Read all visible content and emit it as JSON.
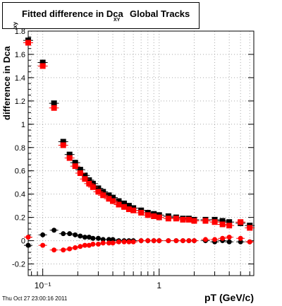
{
  "title": {
    "main": "Fitted difference in Dca",
    "sub": "XY",
    "tail": "Global Tracks"
  },
  "axes": {
    "ylabel": "difference in Dca",
    "ylabel_sub": "xy",
    "xlabel": "pT (GeV/c)",
    "y_ticks": [
      "1.8",
      "1.6",
      "1.4",
      "1.2",
      "1",
      "0.8",
      "0.6",
      "0.4",
      "0.2",
      "0",
      "-0.2"
    ],
    "x_ticks": [
      "10⁻¹",
      "1"
    ]
  },
  "stamp": "Thu Oct 27 23:00:16 2011",
  "colors": {
    "black": "#000000",
    "red": "#ff0000",
    "grid": "#aaaaaa"
  },
  "chart_data": {
    "type": "scatter",
    "xscale": "log",
    "xlim": [
      0.075,
      6.5
    ],
    "ylim": [
      -0.3,
      1.8
    ],
    "grid": true,
    "series": [
      {
        "color": "black",
        "marker": "square",
        "x": [
          0.075,
          0.1,
          0.125,
          0.15,
          0.17,
          0.19,
          0.21,
          0.23,
          0.25,
          0.27,
          0.3,
          0.33,
          0.37,
          0.4,
          0.45,
          0.5,
          0.55,
          0.6,
          0.7,
          0.8,
          0.9,
          1.0,
          1.2,
          1.4,
          1.6,
          1.8,
          2.0,
          2.5,
          3.0,
          3.5,
          4.0,
          5.0,
          6.0
        ],
        "y": [
          1.72,
          1.53,
          1.18,
          0.85,
          0.74,
          0.67,
          0.61,
          0.56,
          0.52,
          0.49,
          0.45,
          0.42,
          0.39,
          0.37,
          0.34,
          0.32,
          0.3,
          0.28,
          0.26,
          0.24,
          0.23,
          0.22,
          0.21,
          0.2,
          0.19,
          0.19,
          0.18,
          0.18,
          0.18,
          0.17,
          0.16,
          0.15,
          0.13
        ]
      },
      {
        "color": "red",
        "marker": "square",
        "x": [
          0.075,
          0.1,
          0.125,
          0.15,
          0.17,
          0.19,
          0.21,
          0.23,
          0.25,
          0.27,
          0.3,
          0.33,
          0.37,
          0.4,
          0.45,
          0.5,
          0.55,
          0.6,
          0.7,
          0.8,
          0.9,
          1.0,
          1.2,
          1.4,
          1.6,
          1.8,
          2.0,
          2.5,
          3.0,
          3.5,
          4.0,
          5.0,
          6.0
        ],
        "y": [
          1.7,
          1.5,
          1.14,
          0.82,
          0.71,
          0.64,
          0.58,
          0.53,
          0.49,
          0.46,
          0.42,
          0.39,
          0.36,
          0.34,
          0.31,
          0.29,
          0.27,
          0.26,
          0.24,
          0.22,
          0.21,
          0.2,
          0.19,
          0.19,
          0.18,
          0.18,
          0.17,
          0.17,
          0.16,
          0.14,
          0.13,
          0.16,
          0.11
        ]
      },
      {
        "color": "black",
        "marker": "circle",
        "x": [
          0.075,
          0.1,
          0.125,
          0.15,
          0.17,
          0.19,
          0.21,
          0.23,
          0.25,
          0.27,
          0.3,
          0.33,
          0.37,
          0.4,
          0.45,
          0.5,
          0.55,
          0.6,
          0.7,
          0.8,
          0.9,
          1.0,
          1.2,
          1.4,
          1.6,
          1.8,
          2.0,
          2.5,
          3.0,
          3.5,
          4.0,
          5.0,
          6.0
        ],
        "y": [
          -0.04,
          0.05,
          0.09,
          0.06,
          0.06,
          0.05,
          0.04,
          0.03,
          0.03,
          0.02,
          0.02,
          0.01,
          0.01,
          0.01,
          0.0,
          0.0,
          0.0,
          0.0,
          0.0,
          0.0,
          0.0,
          0.0,
          0.0,
          0.0,
          0.0,
          0.0,
          0.0,
          0.0,
          -0.01,
          0.0,
          -0.01,
          -0.01,
          -0.01
        ]
      },
      {
        "color": "red",
        "marker": "circle",
        "x": [
          0.075,
          0.1,
          0.125,
          0.15,
          0.17,
          0.19,
          0.21,
          0.23,
          0.25,
          0.27,
          0.3,
          0.33,
          0.37,
          0.4,
          0.45,
          0.5,
          0.55,
          0.6,
          0.7,
          0.8,
          0.9,
          1.0,
          1.2,
          1.4,
          1.6,
          1.8,
          2.0,
          2.5,
          3.0,
          3.5,
          4.0,
          5.0,
          6.0
        ],
        "y": [
          0.03,
          -0.04,
          -0.08,
          -0.08,
          -0.07,
          -0.06,
          -0.05,
          -0.04,
          -0.04,
          -0.03,
          -0.03,
          -0.02,
          -0.02,
          -0.02,
          -0.01,
          -0.01,
          -0.01,
          -0.01,
          0.0,
          0.0,
          0.0,
          0.0,
          0.0,
          0.0,
          0.0,
          0.0,
          0.0,
          0.01,
          0.01,
          0.02,
          0.03,
          0.02,
          -0.01
        ]
      }
    ]
  }
}
